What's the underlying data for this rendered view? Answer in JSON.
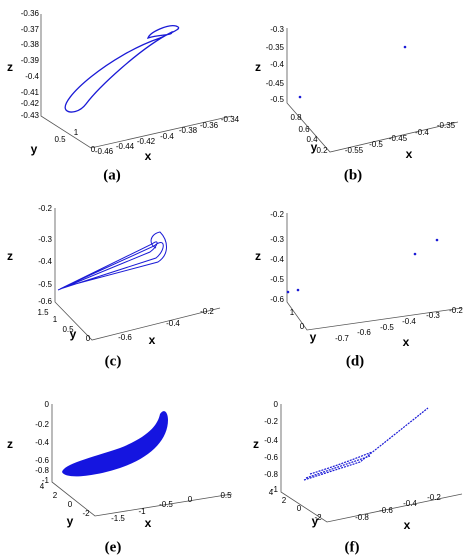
{
  "panels": [
    {
      "label": "(a)",
      "z_label": "z",
      "y_label": "y",
      "x_label": "x",
      "z_ticks": [
        "-0.36",
        "-0.37",
        "-0.38",
        "-0.39",
        "-0.4",
        "-0.41",
        "-0.42",
        "-0.43"
      ],
      "y_ticks": [
        "1",
        "0.5",
        "0"
      ],
      "x_ticks": [
        "-0.46",
        "-0.44",
        "-0.42",
        "-0.4",
        "-0.38",
        "-0.36",
        "-0.34"
      ]
    },
    {
      "label": "(b)",
      "z_label": "z",
      "y_label": "y",
      "x_label": "x",
      "z_ticks": [
        "-0.3",
        "-0.35",
        "-0.4",
        "-0.45",
        "-0.5"
      ],
      "y_ticks": [
        "0.8",
        "0.6",
        "0.4",
        "0.2"
      ],
      "x_ticks": [
        "-0.55",
        "-0.5",
        "-0.45",
        "-0.4",
        "-0.35"
      ]
    },
    {
      "label": "(c)",
      "z_label": "z",
      "y_label": "y",
      "x_label": "x",
      "z_ticks": [
        "-0.2",
        "-0.3",
        "-0.4",
        "-0.5",
        "-0.6"
      ],
      "y_ticks": [
        "1.5",
        "1",
        "0.5",
        "0"
      ],
      "x_ticks": [
        "-0.6",
        "-0.4",
        "-0.2"
      ]
    },
    {
      "label": "(d)",
      "z_label": "z",
      "y_label": "y",
      "x_label": "x",
      "z_ticks": [
        "-0.2",
        "-0.3",
        "-0.4",
        "-0.5",
        "-0.6"
      ],
      "y_ticks": [
        "1",
        "0"
      ],
      "x_ticks": [
        "-0.7",
        "-0.6",
        "-0.5",
        "-0.4",
        "-0.3",
        "-0.2"
      ]
    },
    {
      "label": "(e)",
      "z_label": "z",
      "y_label": "y",
      "x_label": "x",
      "z_ticks": [
        "0",
        "-0.2",
        "-0.4",
        "-0.6",
        "-0.8",
        "-1"
      ],
      "y_ticks": [
        "4",
        "2",
        "0",
        "-2"
      ],
      "x_ticks": [
        "-1.5",
        "-1",
        "-0.5",
        "0",
        "0.5"
      ]
    },
    {
      "label": "(f)",
      "z_label": "z",
      "y_label": "y",
      "x_label": "x",
      "z_ticks": [
        "0",
        "-0.2",
        "-0.4",
        "-0.6",
        "-0.8",
        "-1"
      ],
      "y_ticks": [
        "4",
        "2",
        "0",
        "-2"
      ],
      "x_ticks": [
        "-0.8",
        "-0.6",
        "-0.4",
        "-0.2"
      ]
    }
  ]
}
